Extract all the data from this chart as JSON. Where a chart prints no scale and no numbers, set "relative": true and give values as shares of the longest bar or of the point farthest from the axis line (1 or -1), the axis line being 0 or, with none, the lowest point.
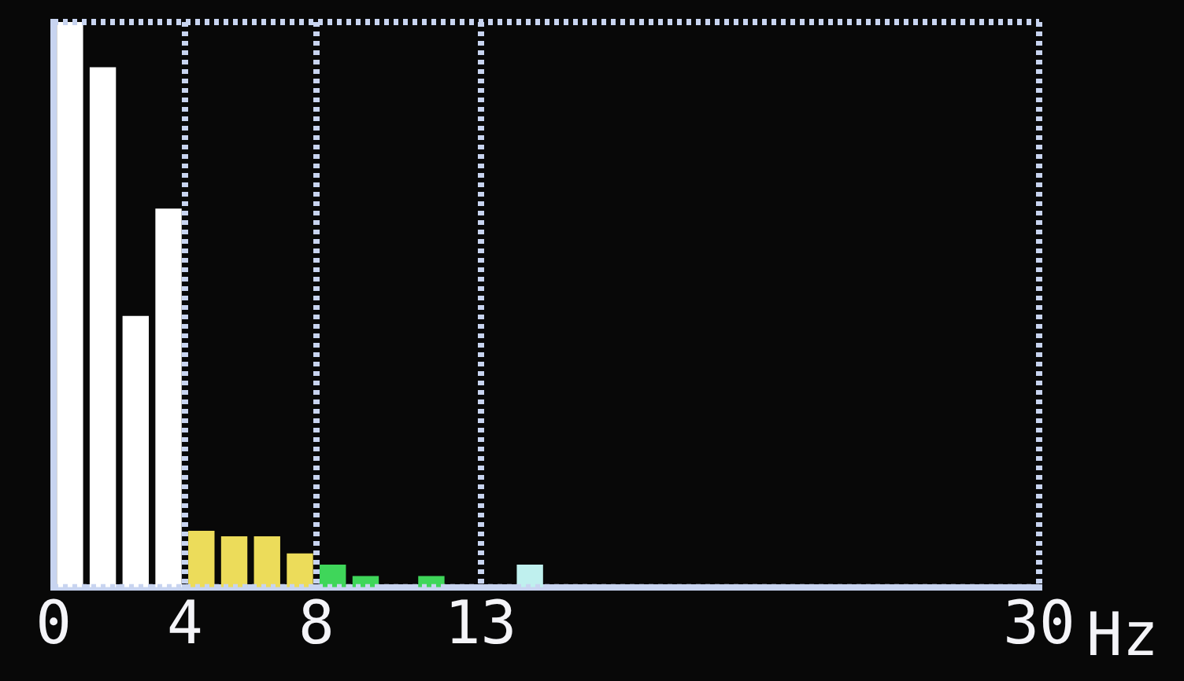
{
  "chart_data": {
    "type": "bar",
    "xlabel": "Hz",
    "relative": true,
    "x": [
      0.5,
      1.5,
      2.5,
      3.5,
      4.5,
      5.5,
      6.5,
      7.5,
      8.5,
      9.5,
      11.5,
      14.5
    ],
    "values": [
      1,
      0.92,
      0.48,
      0.67,
      0.1,
      0.09,
      0.09,
      0.06,
      0.04,
      0.02,
      0.02,
      0.04
    ],
    "colors": [
      "#ffffff",
      "#ffffff",
      "#ffffff",
      "#ffffff",
      "#ecdc5a",
      "#ecdc5a",
      "#ecdc5a",
      "#ecdc5a",
      "#3fd65a",
      "#3fd65a",
      "#3fd65a",
      "#bff0ee"
    ],
    "xlim": [
      0,
      30
    ],
    "xticks": [
      0,
      4,
      8,
      13,
      30
    ],
    "grid": "x",
    "legend": false
  }
}
